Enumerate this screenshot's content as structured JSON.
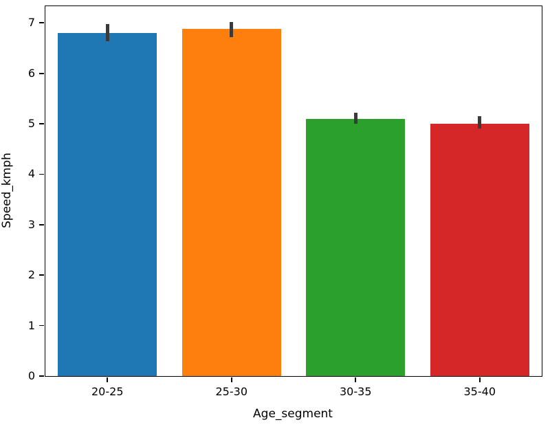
{
  "chart_data": {
    "type": "bar",
    "title": "",
    "xlabel": "Age_segment",
    "ylabel": "Speed_kmph",
    "categories": [
      "20-25",
      "25-30",
      "30-35",
      "35-40"
    ],
    "values": [
      6.8,
      6.88,
      5.1,
      5.0
    ],
    "error_low": [
      6.63,
      6.72,
      5.0,
      4.9
    ],
    "error_high": [
      6.97,
      7.02,
      5.22,
      5.15
    ],
    "bar_colors": [
      "#1f77b4",
      "#ff7f0e",
      "#2ca02c",
      "#d62728"
    ],
    "ylim": [
      0,
      7.33
    ],
    "yticks": [
      0,
      1,
      2,
      3,
      4,
      5,
      6,
      7
    ],
    "grid": false,
    "legend": false,
    "bar_width_fraction": 0.8
  }
}
